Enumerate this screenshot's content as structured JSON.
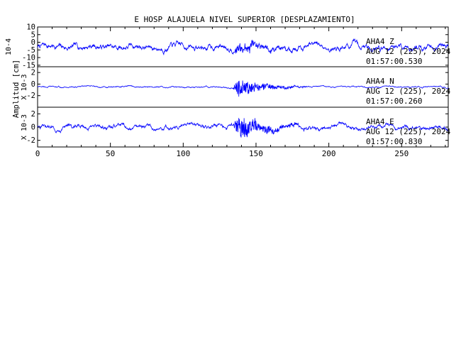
{
  "chart_data": {
    "type": "line",
    "title": "E HOSP ALAJUELA NIVEL SUPERIOR [DESPLAZAMIENTO]",
    "ylabel": "Amplitud [cm]",
    "xlabel": "",
    "xlim": [
      0,
      282
    ],
    "x_ticks": [
      0,
      50,
      100,
      150,
      200,
      250
    ],
    "line_color": "#0000ff",
    "grid": false,
    "panels": [
      {
        "component": "Z",
        "station": "AHA4",
        "component_label": "Z",
        "date": "AUG 12 (225), 2024",
        "time": "01:57:00.530",
        "scale_label": "10-4",
        "ylim": [
          -16,
          10
        ],
        "y_ticks": [
          10,
          5,
          0,
          -5,
          -10,
          -15
        ],
        "y_tick_labels": [
          "10",
          "5",
          "0",
          "-5",
          "-10",
          "-15"
        ],
        "base_amplitude": 2.3,
        "event_amplitude": 3.5,
        "series": [
          {
            "name": "Z",
            "x_start": 0,
            "x_end": 282
          }
        ]
      },
      {
        "component": "N",
        "station": "AHA4",
        "component_label": "N",
        "date": "AUG 12 (225), 2024",
        "time": "01:57:00.260",
        "scale_label": "X 10-3",
        "ylim": [
          -4,
          3
        ],
        "y_ticks": [
          2,
          0,
          -2
        ],
        "y_tick_labels": [
          "2",
          "0",
          "-2"
        ],
        "base_amplitude": 0.15,
        "event_amplitude": 1.6,
        "series": [
          {
            "name": "N",
            "x_start": 0,
            "x_end": 282
          }
        ]
      },
      {
        "component": "E",
        "station": "AHA4",
        "component_label": "E",
        "date": "AUG 12 (225), 2024",
        "time": "01:57:00.830",
        "scale_label": "X 10-3",
        "ylim": [
          -3,
          3
        ],
        "y_ticks": [
          2,
          0,
          -2
        ],
        "y_tick_labels": [
          "2",
          "0",
          "-2"
        ],
        "base_amplitude": 0.4,
        "event_amplitude": 1.9,
        "series": [
          {
            "name": "E",
            "x_start": 0,
            "x_end": 282
          }
        ]
      }
    ]
  }
}
